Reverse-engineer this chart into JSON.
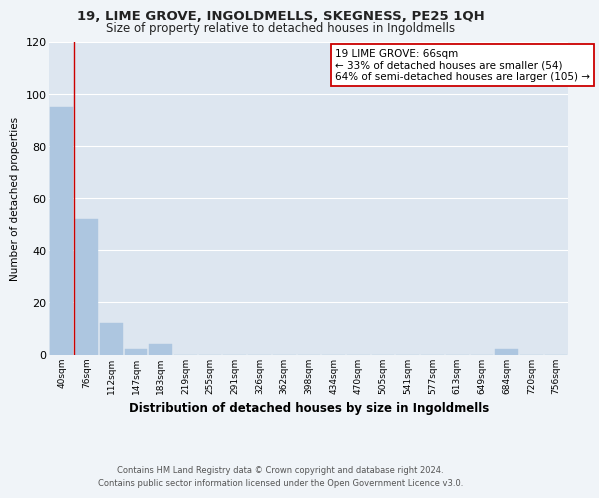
{
  "title1": "19, LIME GROVE, INGOLDMELLS, SKEGNESS, PE25 1QH",
  "title2": "Size of property relative to detached houses in Ingoldmells",
  "xlabel": "Distribution of detached houses by size in Ingoldmells",
  "ylabel": "Number of detached properties",
  "categories": [
    "40sqm",
    "76sqm",
    "112sqm",
    "147sqm",
    "183sqm",
    "219sqm",
    "255sqm",
    "291sqm",
    "326sqm",
    "362sqm",
    "398sqm",
    "434sqm",
    "470sqm",
    "505sqm",
    "541sqm",
    "577sqm",
    "613sqm",
    "649sqm",
    "684sqm",
    "720sqm",
    "756sqm"
  ],
  "values": [
    95,
    52,
    12,
    2,
    4,
    0,
    0,
    0,
    0,
    0,
    0,
    0,
    0,
    0,
    0,
    0,
    0,
    0,
    2,
    0,
    0
  ],
  "bar_color": "#adc6e0",
  "property_line_x": 0.5,
  "property_line_color": "#cc0000",
  "annotation_text": "19 LIME GROVE: 66sqm\n← 33% of detached houses are smaller (54)\n64% of semi-detached houses are larger (105) →",
  "annotation_box_facecolor": "#ffffff",
  "annotation_border_color": "#cc0000",
  "ylim": [
    0,
    120
  ],
  "yticks": [
    0,
    20,
    40,
    60,
    80,
    100,
    120
  ],
  "background_color": "#dde6f0",
  "grid_color": "#ffffff",
  "fig_facecolor": "#f0f4f8",
  "footer1": "Contains HM Land Registry data © Crown copyright and database right 2024.",
  "footer2": "Contains public sector information licensed under the Open Government Licence v3.0."
}
